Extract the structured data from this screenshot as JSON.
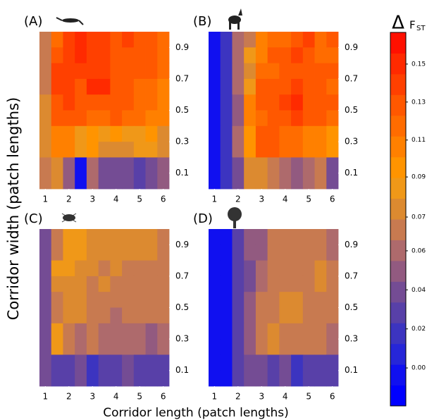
{
  "figure": {
    "xlabel": "Corridor length (patch lengths)",
    "ylabel": "Corridor width (patch lengths)",
    "colorbar": {
      "symbol": "Δ",
      "label": "F",
      "label_sub": "ST",
      "clim": [
        -0.015,
        0.162
      ],
      "colors": [
        "#0000ff",
        "#1010f0",
        "#2626d8",
        "#3c34c0",
        "#5840a8",
        "#744c94",
        "#925a80",
        "#ae6a6c",
        "#c87a50",
        "#dc8a30",
        "#f09818",
        "#ff9400",
        "#ff8000",
        "#ff6c00",
        "#ff5800",
        "#ff4000",
        "#ff2a00",
        "#ff1000"
      ],
      "ticks": [
        {
          "value": 0.003,
          "label": "0.00"
        },
        {
          "value": 0.0215,
          "label": "0.02"
        },
        {
          "value": 0.04,
          "label": "0.04"
        },
        {
          "value": 0.0585,
          "label": "0.06"
        },
        {
          "value": 0.0745,
          "label": "0.07"
        },
        {
          "value": 0.0935,
          "label": "0.09"
        },
        {
          "value": 0.111,
          "label": "0.11"
        },
        {
          "value": 0.129,
          "label": "0.13"
        },
        {
          "value": 0.147,
          "label": "0.15"
        }
      ]
    }
  },
  "chart_data": [
    {
      "type": "heatmap",
      "panel": "(A)",
      "x": [
        1,
        1.5,
        2,
        2.5,
        3,
        3.5,
        4,
        4.5,
        5,
        5.5,
        6
      ],
      "y": [
        0.95,
        0.85,
        0.75,
        0.65,
        0.55,
        0.45,
        0.35,
        0.25,
        0.15,
        0.05
      ],
      "xlim": [
        0.75,
        6.25
      ],
      "ylim": [
        0,
        1
      ],
      "xticks": [
        1,
        2,
        3,
        4,
        5,
        6
      ],
      "yticks": [
        0.1,
        0.3,
        0.5,
        0.7,
        0.9
      ],
      "z": [
        [
          0.065,
          0.12,
          0.135,
          0.15,
          0.14,
          0.14,
          0.13,
          0.135,
          0.13,
          0.13,
          0.12
        ],
        [
          0.065,
          0.125,
          0.135,
          0.145,
          0.14,
          0.135,
          0.13,
          0.13,
          0.13,
          0.13,
          0.12
        ],
        [
          0.065,
          0.14,
          0.14,
          0.14,
          0.14,
          0.14,
          0.13,
          0.13,
          0.13,
          0.125,
          0.12
        ],
        [
          0.065,
          0.14,
          0.14,
          0.13,
          0.145,
          0.145,
          0.13,
          0.125,
          0.12,
          0.12,
          0.11
        ],
        [
          0.08,
          0.13,
          0.135,
          0.13,
          0.13,
          0.13,
          0.125,
          0.125,
          0.12,
          0.12,
          0.11
        ],
        [
          0.08,
          0.125,
          0.13,
          0.125,
          0.12,
          0.12,
          0.125,
          0.12,
          0.12,
          0.11,
          0.11
        ],
        [
          0.08,
          0.105,
          0.105,
          0.09,
          0.1,
          0.09,
          0.1,
          0.09,
          0.09,
          0.1,
          0.08
        ],
        [
          0.08,
          0.105,
          0.105,
          0.085,
          0.095,
          0.08,
          0.08,
          0.08,
          0.09,
          0.09,
          0.075
        ],
        [
          0.065,
          0.08,
          0.045,
          0.0,
          0.06,
          0.04,
          0.04,
          0.04,
          0.025,
          0.035,
          0.05
        ],
        [
          0.065,
          0.08,
          0.045,
          0.0,
          0.06,
          0.04,
          0.04,
          0.04,
          0.025,
          0.035,
          0.05
        ]
      ]
    },
    {
      "type": "heatmap",
      "panel": "(B)",
      "x": [
        1,
        1.5,
        2,
        2.5,
        3,
        3.5,
        4,
        4.5,
        5,
        5.5,
        6
      ],
      "y": [
        0.95,
        0.85,
        0.75,
        0.65,
        0.55,
        0.45,
        0.35,
        0.25,
        0.15,
        0.05
      ],
      "xlim": [
        0.75,
        6.25
      ],
      "ylim": [
        0,
        1
      ],
      "xticks": [
        1,
        2,
        3,
        4,
        5,
        6
      ],
      "yticks": [
        0.1,
        0.3,
        0.5,
        0.7,
        0.9
      ],
      "z": [
        [
          0,
          0.015,
          0.06,
          0.07,
          0.11,
          0.12,
          0.12,
          0.13,
          0.14,
          0.12,
          0.125
        ],
        [
          0,
          0.015,
          0.06,
          0.09,
          0.11,
          0.125,
          0.13,
          0.135,
          0.13,
          0.12,
          0.12
        ],
        [
          0,
          0.015,
          0.06,
          0.08,
          0.12,
          0.12,
          0.13,
          0.13,
          0.13,
          0.13,
          0.125
        ],
        [
          0,
          0.015,
          0.055,
          0.085,
          0.125,
          0.13,
          0.13,
          0.135,
          0.13,
          0.13,
          0.12
        ],
        [
          0,
          0.015,
          0.05,
          0.11,
          0.125,
          0.13,
          0.14,
          0.15,
          0.13,
          0.13,
          0.125
        ],
        [
          0,
          0.015,
          0.05,
          0.11,
          0.12,
          0.125,
          0.13,
          0.14,
          0.13,
          0.13,
          0.12
        ],
        [
          0,
          0.015,
          0.055,
          0.1,
          0.13,
          0.125,
          0.12,
          0.12,
          0.11,
          0.11,
          0.1
        ],
        [
          0,
          0.015,
          0.055,
          0.1,
          0.13,
          0.125,
          0.12,
          0.12,
          0.11,
          0.11,
          0.1
        ],
        [
          0,
          0.015,
          0.04,
          0.08,
          0.075,
          0.065,
          0.06,
          0.045,
          0.055,
          0.065,
          0.035
        ],
        [
          0,
          0.015,
          0.04,
          0.08,
          0.075,
          0.065,
          0.06,
          0.045,
          0.055,
          0.065,
          0.035
        ]
      ]
    },
    {
      "type": "heatmap",
      "panel": "(C)",
      "x": [
        1,
        1.5,
        2,
        2.5,
        3,
        3.5,
        4,
        4.5,
        5,
        5.5,
        6
      ],
      "y": [
        0.95,
        0.85,
        0.75,
        0.65,
        0.55,
        0.45,
        0.35,
        0.25,
        0.15,
        0.05
      ],
      "xlim": [
        0.75,
        6.25
      ],
      "ylim": [
        0,
        1
      ],
      "xticks": [
        1,
        2,
        3,
        4,
        5,
        6
      ],
      "yticks": [
        0.1,
        0.3,
        0.5,
        0.7,
        0.9
      ],
      "z": [
        [
          0.035,
          0.065,
          0.085,
          0.085,
          0.08,
          0.075,
          0.08,
          0.08,
          0.075,
          0.075,
          0.07
        ],
        [
          0.035,
          0.065,
          0.085,
          0.085,
          0.075,
          0.075,
          0.08,
          0.08,
          0.075,
          0.075,
          0.07
        ],
        [
          0.035,
          0.085,
          0.085,
          0.08,
          0.075,
          0.07,
          0.075,
          0.07,
          0.07,
          0.07,
          0.065
        ],
        [
          0.035,
          0.08,
          0.08,
          0.075,
          0.07,
          0.075,
          0.07,
          0.07,
          0.065,
          0.065,
          0.065
        ],
        [
          0.04,
          0.065,
          0.08,
          0.08,
          0.07,
          0.07,
          0.065,
          0.07,
          0.065,
          0.065,
          0.065
        ],
        [
          0.04,
          0.065,
          0.08,
          0.08,
          0.07,
          0.065,
          0.06,
          0.065,
          0.065,
          0.065,
          0.065
        ],
        [
          0.04,
          0.085,
          0.065,
          0.055,
          0.065,
          0.055,
          0.055,
          0.06,
          0.06,
          0.05,
          0.06
        ],
        [
          0.04,
          0.085,
          0.065,
          0.055,
          0.065,
          0.055,
          0.055,
          0.06,
          0.06,
          0.05,
          0.06
        ],
        [
          0.035,
          0.03,
          0.03,
          0.035,
          0.015,
          0.03,
          0.03,
          0.035,
          0.03,
          0.03,
          0.03
        ],
        [
          0.035,
          0.03,
          0.03,
          0.035,
          0.015,
          0.03,
          0.03,
          0.035,
          0.03,
          0.03,
          0.03
        ]
      ]
    },
    {
      "type": "heatmap",
      "panel": "(D)",
      "x": [
        1,
        1.5,
        2,
        2.5,
        3,
        3.5,
        4,
        4.5,
        5,
        5.5,
        6
      ],
      "y": [
        0.95,
        0.85,
        0.75,
        0.65,
        0.55,
        0.45,
        0.35,
        0.25,
        0.15,
        0.05
      ],
      "xlim": [
        0.75,
        6.25
      ],
      "ylim": [
        0,
        1
      ],
      "xticks": [
        1,
        2,
        3,
        4,
        5,
        6
      ],
      "yticks": [
        0.1,
        0.3,
        0.5,
        0.7,
        0.9
      ],
      "z": [
        [
          0,
          0,
          0.03,
          0.045,
          0.05,
          0.07,
          0.065,
          0.065,
          0.065,
          0.065,
          0.06
        ],
        [
          0,
          0,
          0.03,
          0.045,
          0.05,
          0.065,
          0.065,
          0.065,
          0.065,
          0.065,
          0.06
        ],
        [
          0,
          0,
          0.03,
          0.04,
          0.06,
          0.07,
          0.07,
          0.065,
          0.065,
          0.075,
          0.065
        ],
        [
          0,
          0,
          0.03,
          0.04,
          0.06,
          0.07,
          0.07,
          0.07,
          0.065,
          0.08,
          0.065
        ],
        [
          0,
          0,
          0.03,
          0.045,
          0.065,
          0.07,
          0.075,
          0.075,
          0.065,
          0.065,
          0.065
        ],
        [
          0,
          0,
          0.03,
          0.045,
          0.065,
          0.065,
          0.075,
          0.075,
          0.065,
          0.065,
          0.065
        ],
        [
          0,
          0,
          0.03,
          0.05,
          0.065,
          0.075,
          0.07,
          0.065,
          0.065,
          0.065,
          0.06
        ],
        [
          0,
          0,
          0.03,
          0.05,
          0.065,
          0.075,
          0.065,
          0.065,
          0.065,
          0.065,
          0.06
        ],
        [
          0,
          0,
          0.025,
          0.035,
          0.04,
          0.03,
          0.035,
          0.02,
          0.025,
          0.025,
          0.03
        ],
        [
          0,
          0,
          0.025,
          0.035,
          0.04,
          0.03,
          0.035,
          0.02,
          0.025,
          0.025,
          0.03
        ]
      ]
    }
  ]
}
